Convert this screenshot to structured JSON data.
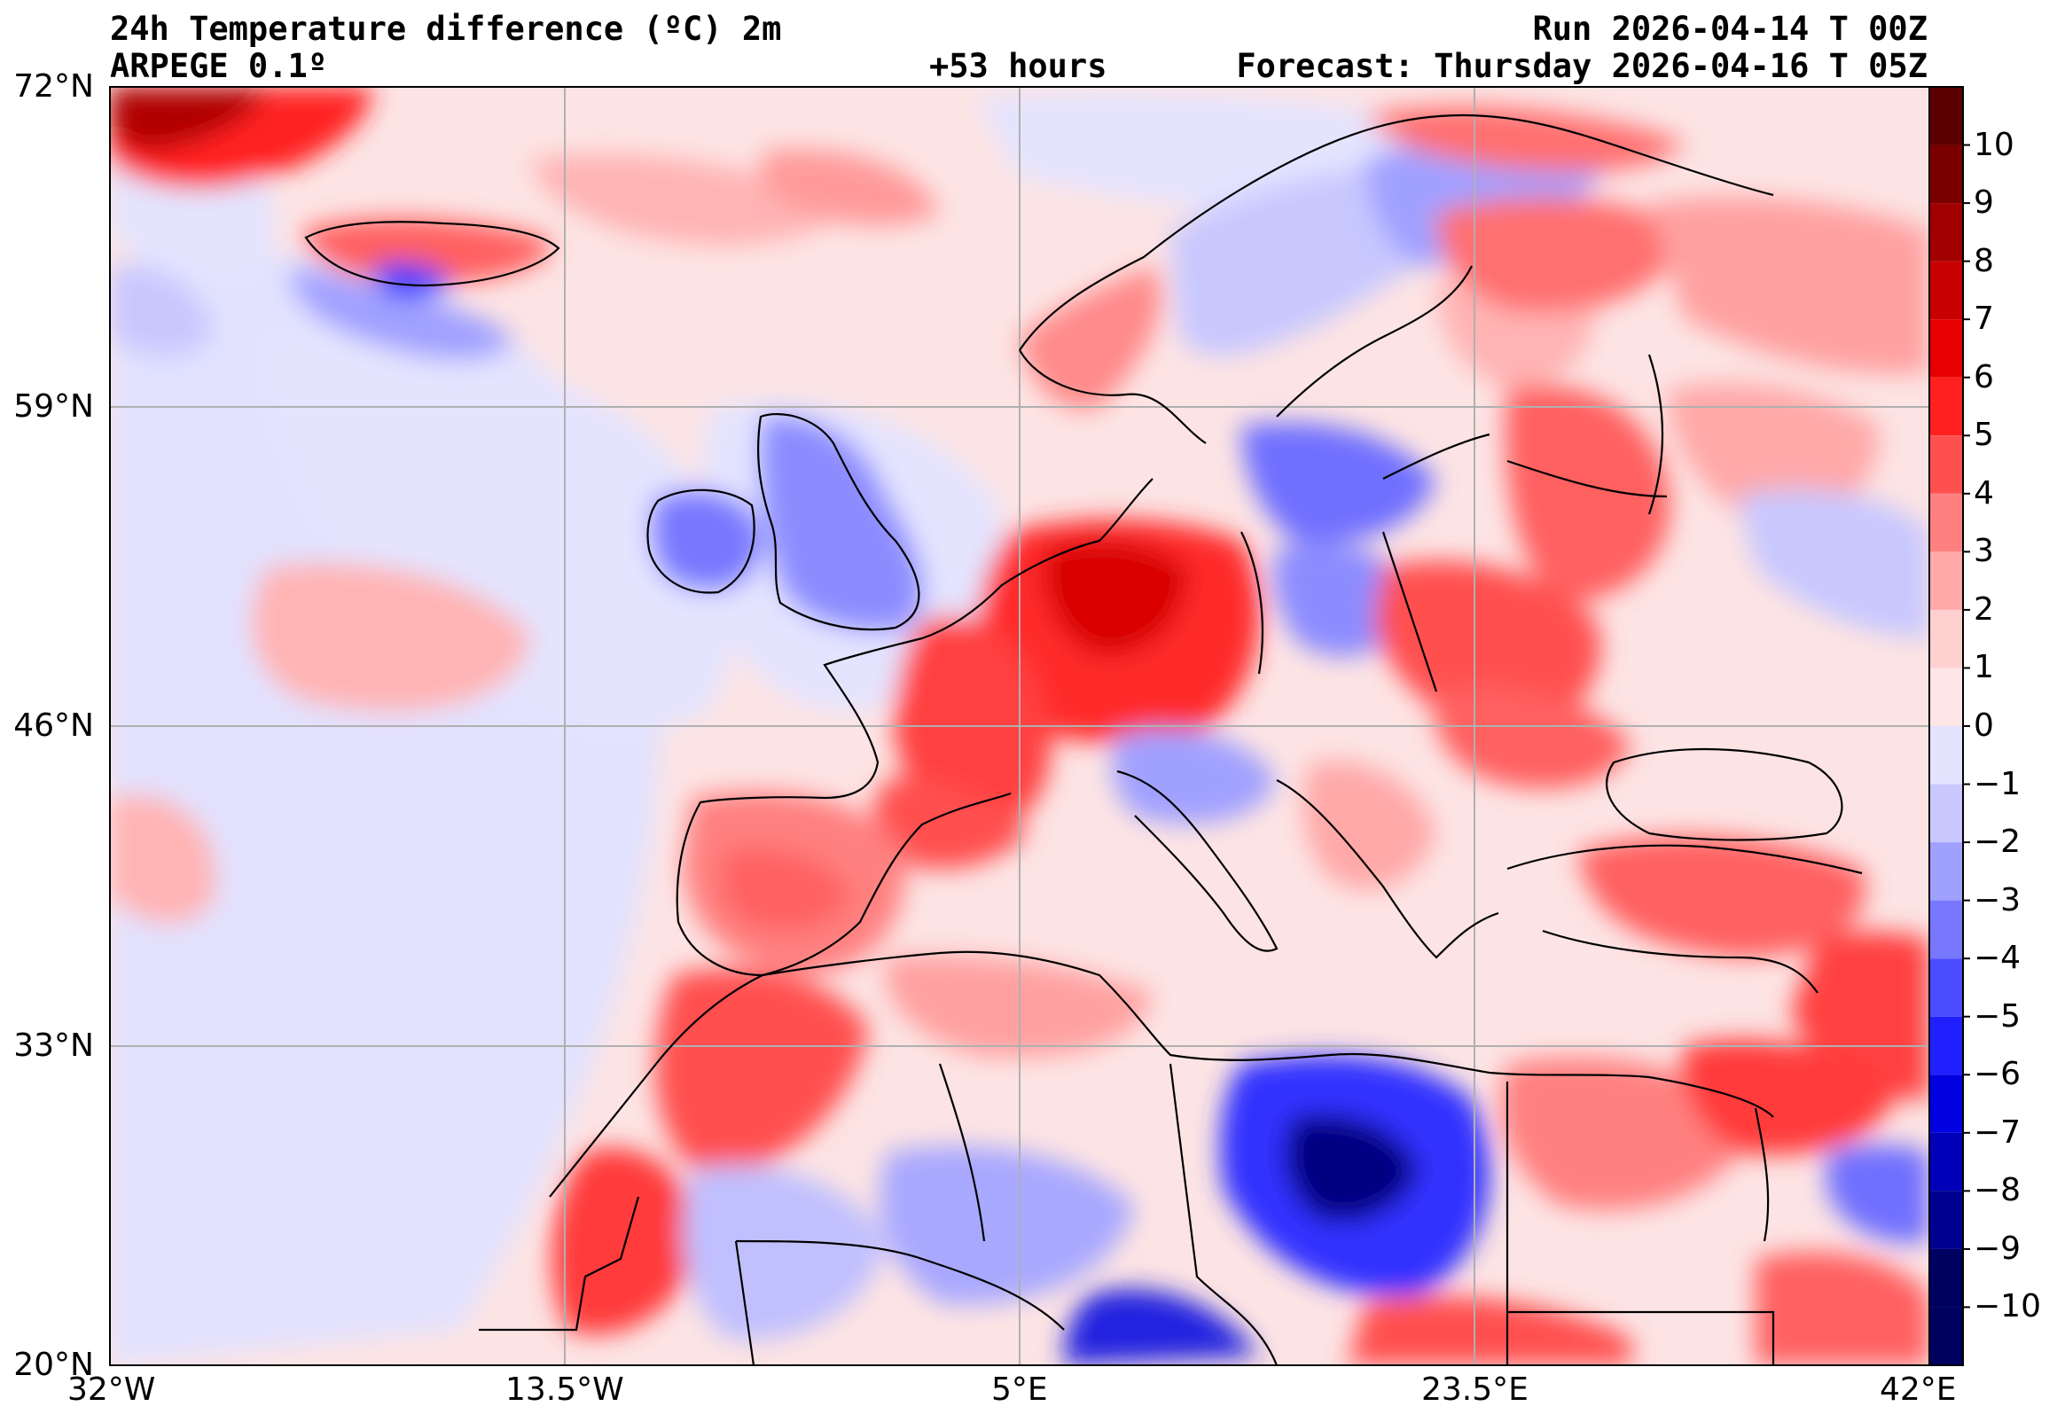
{
  "header": {
    "title": "24h Temperature difference (ºC) 2m",
    "model": "ARPEGE 0.1º",
    "lead": "+53 hours",
    "run": "Run 2026-04-14 T 00Z",
    "forecast": "Forecast: Thursday 2026-04-16 T 05Z"
  },
  "axes": {
    "lat_labels": [
      "72°N",
      "59°N",
      "46°N",
      "33°N",
      "20°N"
    ],
    "lon_labels": [
      "32°W",
      "13.5°W",
      "5°E",
      "23.5°E",
      "42°E"
    ]
  },
  "colorbar": {
    "labels": [
      "10",
      "9",
      "8",
      "7",
      "6",
      "5",
      "4",
      "3",
      "2",
      "1",
      "0",
      "−1",
      "−2",
      "−3",
      "−4",
      "−5",
      "−6",
      "−7",
      "−8",
      "−9",
      "−10"
    ],
    "colors": [
      "#5a0000",
      "#7a0000",
      "#a00000",
      "#c80000",
      "#e60000",
      "#ff2020",
      "#ff5050",
      "#ff8080",
      "#ffa8a8",
      "#ffd0d0",
      "#ffe6e6",
      "#e4e4ff",
      "#c8c8ff",
      "#a0a0ff",
      "#7878ff",
      "#4c4cff",
      "#2020ff",
      "#0000e0",
      "#0000b8",
      "#000090",
      "#000060"
    ]
  },
  "map": {
    "land_warm": "#ff6060",
    "sea_neutral": "#fde0e0",
    "cool": "#c8c8ff"
  }
}
